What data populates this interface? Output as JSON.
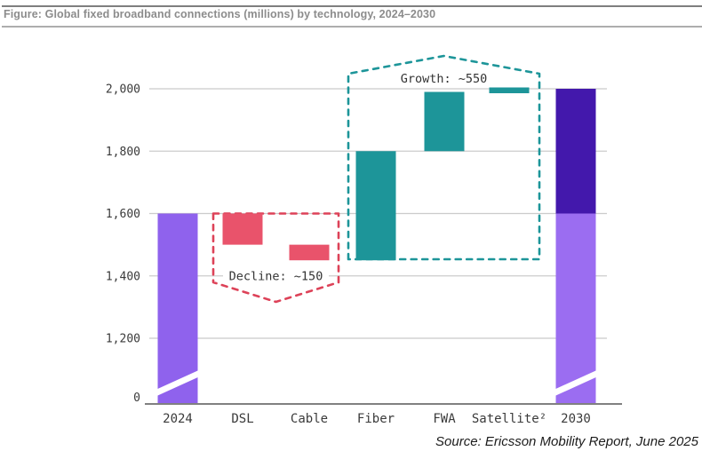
{
  "header": {
    "title": "Figure: Global fixed broadband connections (millions) by technology, 2024–2030"
  },
  "footer": {
    "source": "Source: Ericsson Mobility Report, June 2025"
  },
  "chart_data": {
    "type": "waterfall",
    "title": "Global fixed broadband connections (millions) by technology, 2024–2030",
    "unit": "millions of connections",
    "categories": [
      "2024",
      "DSL",
      "Cable",
      "Fiber",
      "FWA",
      "Satellite²",
      "2030"
    ],
    "y_axis": {
      "ticks": [
        0,
        1200,
        1400,
        1600,
        1800,
        2000
      ],
      "tick_labels": [
        "0",
        "1,200",
        "1,400",
        "1,600",
        "1,800",
        "2,000"
      ],
      "axis_break_between": [
        0,
        1200
      ],
      "grid": true
    },
    "bars": [
      {
        "category": "2024",
        "from": 0,
        "to": 1600,
        "kind": "total",
        "color": "#8F62ED",
        "axis_break_marker": true
      },
      {
        "category": "DSL",
        "from": 1600,
        "to": 1500,
        "kind": "decline",
        "change": -100,
        "color": "#E9536B"
      },
      {
        "category": "Cable",
        "from": 1500,
        "to": 1450,
        "kind": "decline",
        "change": -50,
        "color": "#E9536B"
      },
      {
        "category": "Fiber",
        "from": 1450,
        "to": 1800,
        "kind": "growth",
        "change": 350,
        "color": "#1D9599"
      },
      {
        "category": "FWA",
        "from": 1800,
        "to": 1990,
        "kind": "growth",
        "change": 190,
        "color": "#1D9599"
      },
      {
        "category": "Satellite²",
        "from": 1990,
        "to": 2000,
        "kind": "growth",
        "change": 10,
        "color": "#1D9599"
      },
      {
        "category": "2030",
        "from": 0,
        "to": 2000,
        "kind": "total",
        "axis_break_marker": true,
        "segments": [
          {
            "from": 0,
            "to": 1600,
            "color": "#9B6DF1"
          },
          {
            "from": 1600,
            "to": 2000,
            "color": "#4318AC"
          }
        ]
      }
    ],
    "annotations": [
      {
        "id": "decline-group",
        "label": "Decline: ~150",
        "covers": [
          "DSL",
          "Cable"
        ],
        "color": "#DD4258",
        "shape": "bracket-chevron-down"
      },
      {
        "id": "growth-group",
        "label": "Growth: ~550",
        "covers": [
          "Fiber",
          "FWA",
          "Satellite²"
        ],
        "color": "#1D9599",
        "shape": "bracket-chevron-up"
      }
    ],
    "colors": {
      "grid": "#CBCBCB",
      "axis": "#808080",
      "text": "#3A3A3A",
      "annotation_text": "#333333",
      "break_marker": "#FFFFFF"
    }
  }
}
